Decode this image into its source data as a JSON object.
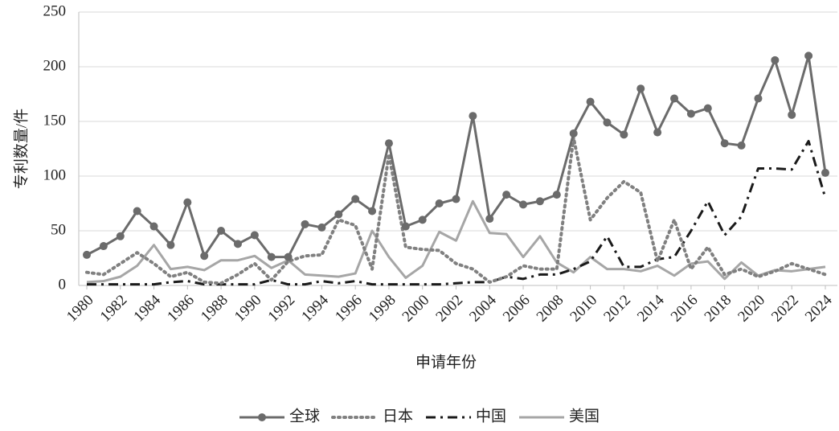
{
  "chart_data": {
    "type": "line",
    "y_label": "专利数量/件",
    "x_label": "申请年份",
    "x": [
      1980,
      1981,
      1982,
      1983,
      1984,
      1985,
      1986,
      1987,
      1988,
      1989,
      1990,
      1991,
      1992,
      1993,
      1994,
      1995,
      1996,
      1997,
      1998,
      1999,
      2000,
      2001,
      2002,
      2003,
      2004,
      2005,
      2006,
      2007,
      2008,
      2009,
      2010,
      2011,
      2012,
      2013,
      2014,
      2015,
      2016,
      2017,
      2018,
      2019,
      2020,
      2021,
      2022,
      2023,
      2024
    ],
    "xlim": [
      1980,
      2024
    ],
    "xticks": [
      1980,
      1982,
      1984,
      1986,
      1988,
      1990,
      1992,
      1994,
      1996,
      1998,
      2000,
      2002,
      2004,
      2006,
      2008,
      2010,
      2012,
      2014,
      2016,
      2018,
      2020,
      2022,
      2024
    ],
    "ylim": [
      0,
      250
    ],
    "yticks": [
      0,
      50,
      100,
      150,
      200,
      250
    ],
    "grid": true,
    "legend": "bottom",
    "series": [
      {
        "name": "全球",
        "color": "#6b6b6b",
        "dash": "solid",
        "marker": true,
        "values": [
          28,
          36,
          45,
          68,
          54,
          37,
          76,
          27,
          50,
          38,
          46,
          26,
          26,
          56,
          53,
          65,
          79,
          68,
          130,
          54,
          60,
          75,
          79,
          155,
          61,
          83,
          74,
          77,
          83,
          139,
          168,
          149,
          138,
          180,
          140,
          171,
          157,
          162,
          130,
          128,
          171,
          206,
          156,
          210,
          103
        ]
      },
      {
        "name": "日本",
        "color": "#808080",
        "dash": "dot",
        "marker": false,
        "values": [
          12,
          10,
          20,
          30,
          20,
          8,
          12,
          3,
          2,
          10,
          20,
          5,
          22,
          27,
          28,
          60,
          55,
          15,
          120,
          35,
          33,
          32,
          20,
          15,
          3,
          8,
          18,
          15,
          15,
          135,
          60,
          80,
          95,
          85,
          22,
          60,
          15,
          35,
          10,
          15,
          8,
          13,
          20,
          15,
          10
        ]
      },
      {
        "name": "中国",
        "color": "#1a1a1a",
        "dash": "dashdot",
        "marker": false,
        "values": [
          1,
          1,
          1,
          1,
          1,
          3,
          4,
          1,
          1,
          1,
          1,
          5,
          1,
          1,
          4,
          2,
          4,
          1,
          1,
          1,
          1,
          1,
          2,
          3,
          3,
          8,
          6,
          10,
          10,
          15,
          22,
          45,
          17,
          17,
          24,
          26,
          50,
          77,
          46,
          63,
          107,
          107,
          106,
          132,
          80
        ]
      },
      {
        "name": "美国",
        "color": "#a6a6a6",
        "dash": "solid",
        "marker": false,
        "values": [
          3,
          4,
          8,
          18,
          37,
          15,
          17,
          14,
          23,
          23,
          27,
          16,
          23,
          10,
          9,
          8,
          11,
          50,
          26,
          7,
          18,
          49,
          41,
          77,
          48,
          47,
          26,
          45,
          21,
          12,
          26,
          15,
          15,
          13,
          18,
          9,
          20,
          22,
          6,
          21,
          9,
          14,
          13,
          15,
          17
        ]
      }
    ]
  }
}
